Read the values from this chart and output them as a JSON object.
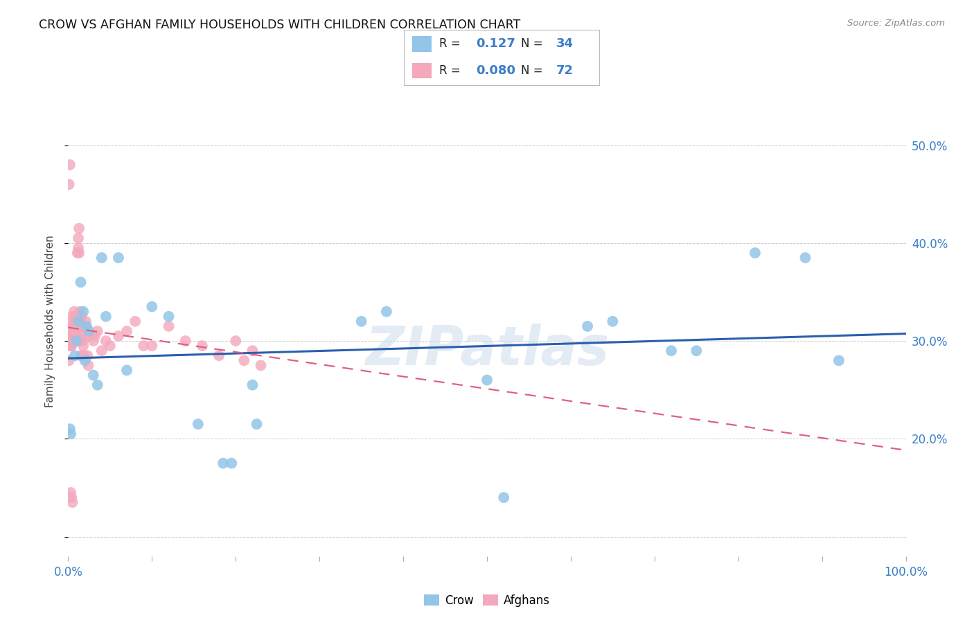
{
  "title": "CROW VS AFGHAN FAMILY HOUSEHOLDS WITH CHILDREN CORRELATION CHART",
  "source": "Source: ZipAtlas.com",
  "ylabel": "Family Households with Children",
  "xlim": [
    0.0,
    1.0
  ],
  "ylim": [
    0.08,
    0.56
  ],
  "xtick_positions": [
    0.0,
    0.1,
    0.2,
    0.3,
    0.4,
    0.5,
    0.6,
    0.7,
    0.8,
    0.9,
    1.0
  ],
  "xtick_labels": [
    "0.0%",
    "",
    "",
    "",
    "",
    "",
    "",
    "",
    "",
    "",
    "100.0%"
  ],
  "ytick_positions": [
    0.1,
    0.2,
    0.3,
    0.4,
    0.5
  ],
  "ytick_labels": [
    "",
    "20.0%",
    "30.0%",
    "40.0%",
    "50.0%"
  ],
  "crow_color": "#92C5E8",
  "afghan_color": "#F4A8BC",
  "crow_line_color": "#2B5FAC",
  "afghan_line_color": "#E06080",
  "crow_R": 0.127,
  "crow_N": 34,
  "afghan_R": 0.08,
  "afghan_N": 72,
  "watermark": "ZIPatlas",
  "crow_x": [
    0.002,
    0.003,
    0.008,
    0.01,
    0.012,
    0.015,
    0.018,
    0.02,
    0.022,
    0.025,
    0.03,
    0.035,
    0.04,
    0.045,
    0.06,
    0.07,
    0.1,
    0.12,
    0.155,
    0.185,
    0.195,
    0.22,
    0.225,
    0.35,
    0.38,
    0.5,
    0.52,
    0.62,
    0.65,
    0.72,
    0.75,
    0.82,
    0.88,
    0.92
  ],
  "crow_y": [
    0.21,
    0.205,
    0.285,
    0.3,
    0.32,
    0.36,
    0.33,
    0.28,
    0.315,
    0.31,
    0.265,
    0.255,
    0.385,
    0.325,
    0.385,
    0.27,
    0.335,
    0.325,
    0.215,
    0.175,
    0.175,
    0.255,
    0.215,
    0.32,
    0.33,
    0.26,
    0.14,
    0.315,
    0.32,
    0.29,
    0.29,
    0.39,
    0.385,
    0.28
  ],
  "afghan_x": [
    0.001,
    0.002,
    0.002,
    0.003,
    0.003,
    0.004,
    0.004,
    0.005,
    0.005,
    0.005,
    0.006,
    0.006,
    0.006,
    0.007,
    0.007,
    0.007,
    0.008,
    0.008,
    0.008,
    0.009,
    0.009,
    0.01,
    0.01,
    0.01,
    0.011,
    0.011,
    0.012,
    0.012,
    0.013,
    0.013,
    0.014,
    0.014,
    0.015,
    0.015,
    0.015,
    0.016,
    0.016,
    0.017,
    0.017,
    0.018,
    0.018,
    0.019,
    0.02,
    0.021,
    0.022,
    0.023,
    0.024,
    0.025,
    0.03,
    0.032,
    0.035,
    0.04,
    0.045,
    0.05,
    0.06,
    0.07,
    0.08,
    0.09,
    0.1,
    0.12,
    0.14,
    0.16,
    0.18,
    0.2,
    0.21,
    0.22,
    0.23,
    0.001,
    0.002,
    0.003,
    0.004,
    0.005
  ],
  "afghan_y": [
    0.28,
    0.31,
    0.295,
    0.31,
    0.295,
    0.305,
    0.295,
    0.315,
    0.325,
    0.305,
    0.3,
    0.32,
    0.315,
    0.3,
    0.315,
    0.33,
    0.315,
    0.325,
    0.31,
    0.32,
    0.305,
    0.31,
    0.325,
    0.315,
    0.325,
    0.39,
    0.395,
    0.405,
    0.415,
    0.39,
    0.32,
    0.33,
    0.3,
    0.285,
    0.32,
    0.325,
    0.31,
    0.3,
    0.285,
    0.315,
    0.295,
    0.285,
    0.315,
    0.32,
    0.305,
    0.285,
    0.275,
    0.305,
    0.3,
    0.305,
    0.31,
    0.29,
    0.3,
    0.295,
    0.305,
    0.31,
    0.32,
    0.295,
    0.295,
    0.315,
    0.3,
    0.295,
    0.285,
    0.3,
    0.28,
    0.29,
    0.275,
    0.46,
    0.48,
    0.145,
    0.14,
    0.135
  ]
}
